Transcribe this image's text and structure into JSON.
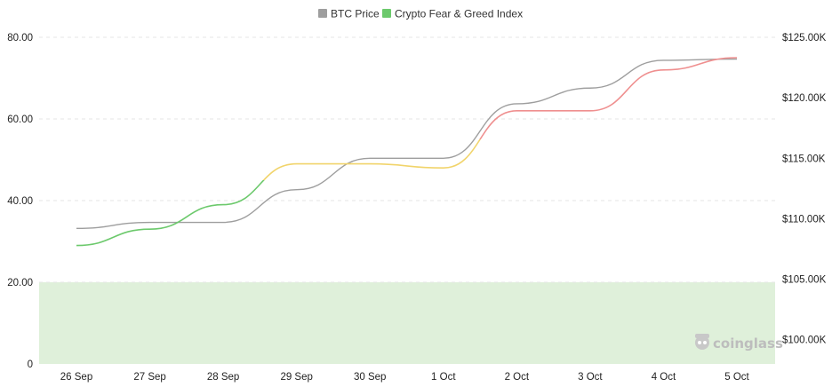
{
  "chart_data": {
    "type": "line",
    "categories": [
      "26 Sep",
      "27 Sep",
      "28 Sep",
      "29 Sep",
      "30 Sep",
      "1 Oct",
      "2 Oct",
      "3 Oct",
      "4 Oct",
      "5 Oct"
    ],
    "series": [
      {
        "name": "BTC Price",
        "axis": "right",
        "color": "#9e9e9e",
        "values": [
          109200,
          109700,
          109700,
          112400,
          115000,
          115000,
          119500,
          120800,
          123100,
          123200
        ]
      },
      {
        "name": "Crypto Fear & Greed Index",
        "axis": "left",
        "values": [
          29,
          33,
          39,
          49,
          49,
          48,
          62,
          62,
          72,
          75
        ],
        "zone_colors": {
          "fear": "#6cc96c",
          "neutral": "#f1d46b",
          "greed": "#ef8f8f"
        }
      }
    ],
    "y_left": {
      "ticks": [
        "0",
        "20.00",
        "40.00",
        "60.00",
        "80.00"
      ],
      "ylim": [
        0,
        80
      ]
    },
    "y_right": {
      "ticks": [
        "$100.00K",
        "$105.00K",
        "$110.00K",
        "$115.00K",
        "$120.00K",
        "$125.00K"
      ],
      "ylim": [
        98000,
        125000
      ]
    },
    "shaded_band": {
      "from": 0,
      "to": 20,
      "color": "#dff0da"
    },
    "legend_position": "top-center",
    "grid": true,
    "watermark": "coinglass"
  }
}
